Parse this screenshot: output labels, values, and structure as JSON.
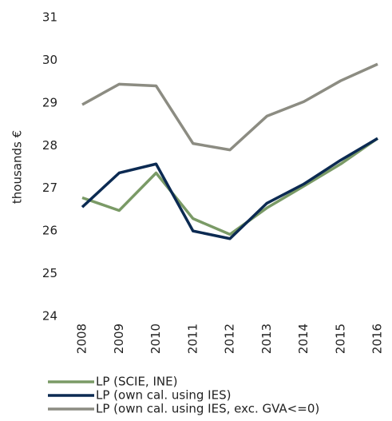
{
  "chart_data": {
    "type": "line",
    "y_label": "thousands €",
    "categories": [
      "2008",
      "2009",
      "2010",
      "2011",
      "2012",
      "2013",
      "2014",
      "2015",
      "2016"
    ],
    "series": [
      {
        "name": "LP (SCIE, INE)",
        "color": "#7a9a66",
        "values": [
          26.78,
          26.48,
          27.36,
          26.29,
          25.92,
          26.54,
          27.05,
          27.57,
          28.17
        ]
      },
      {
        "name": "LP (own cal. using IES)",
        "color": "#0b2a52",
        "values": [
          26.56,
          27.36,
          27.57,
          26.0,
          25.82,
          26.65,
          27.1,
          27.66,
          28.17
        ]
      },
      {
        "name": "LP (own cal. using IES, exc. GVA<=0)",
        "color": "#8c8c82",
        "values": [
          28.96,
          29.44,
          29.4,
          28.05,
          27.9,
          28.69,
          29.03,
          29.52,
          29.91
        ]
      }
    ],
    "ylim": [
      24,
      31
    ],
    "yticks": [
      24,
      25,
      26,
      27,
      28,
      29,
      30,
      31
    ],
    "grid": false
  }
}
